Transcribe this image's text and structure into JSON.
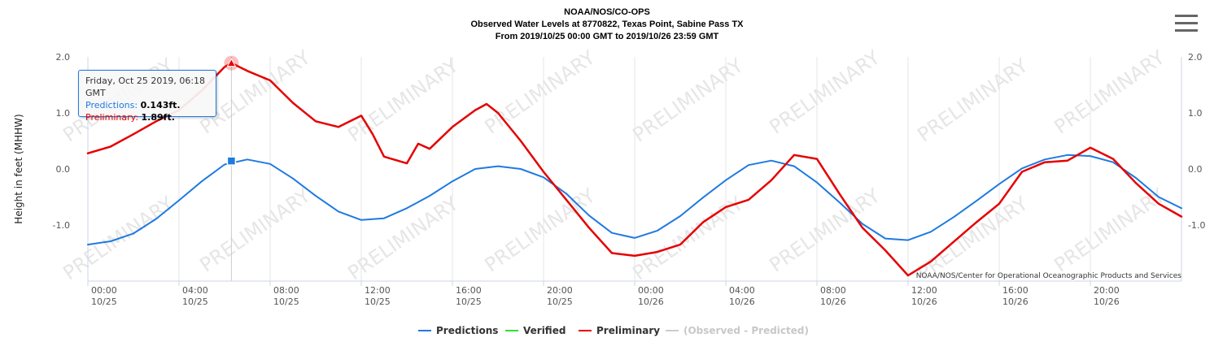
{
  "header": {
    "line1": "NOAA/NOS/CO-OPS",
    "line2": "Observed Water Levels at 8770822, Texas Point, Sabine Pass TX",
    "line3": "From 2019/10/25 00:00 GMT to 2019/10/26 23:59 GMT"
  },
  "watermark": "PRELIMINARY",
  "credit": "NOAA/NOS/Center for Operational Oceanographic Products and Services",
  "tooltip": {
    "date": "Friday, Oct 25 2019, 06:18 GMT",
    "pred_label": "Predictions:",
    "pred_value": "0.143ft.",
    "prelim_label": "Preliminary:",
    "prelim_value": "1.89ft."
  },
  "legend": [
    {
      "label": "Predictions",
      "color": "#1f7ae0"
    },
    {
      "label": "Verified",
      "color": "#33dd33"
    },
    {
      "label": "Preliminary",
      "color": "#e60000"
    },
    {
      "label": "(Observed - Predicted)",
      "color": "#cccccc"
    }
  ],
  "chart_data": {
    "type": "line",
    "ylabel": "Height in feet (MHHW)",
    "ylim": [
      -2.0,
      2.0
    ],
    "xlim_hours": [
      0,
      48
    ],
    "y_ticks": [
      "-1.0",
      "0.0",
      "1.0",
      "2.0"
    ],
    "x_ticks": [
      {
        "time": "00:00",
        "date": "10/25"
      },
      {
        "time": "04:00",
        "date": "10/25"
      },
      {
        "time": "08:00",
        "date": "10/25"
      },
      {
        "time": "12:00",
        "date": "10/25"
      },
      {
        "time": "16:00",
        "date": "10/25"
      },
      {
        "time": "20:00",
        "date": "10/25"
      },
      {
        "time": "00:00",
        "date": "10/26"
      },
      {
        "time": "04:00",
        "date": "10/26"
      },
      {
        "time": "08:00",
        "date": "10/26"
      },
      {
        "time": "12:00",
        "date": "10/26"
      },
      {
        "time": "16:00",
        "date": "10/26"
      },
      {
        "time": "20:00",
        "date": "10/26"
      }
    ],
    "grid": "vertical",
    "series": [
      {
        "name": "Predictions",
        "color": "#1f7ae0",
        "x_hours": [
          0,
          1,
          2,
          3,
          4,
          5,
          6,
          7,
          8,
          9,
          10,
          11,
          12,
          13,
          14,
          15,
          16,
          17,
          18,
          19,
          20,
          21,
          22,
          23,
          24,
          25,
          26,
          27,
          28,
          29,
          30,
          31,
          32,
          33,
          34,
          35,
          36,
          37,
          38,
          39,
          40,
          41,
          42,
          43,
          44,
          45,
          46,
          47,
          48
        ],
        "values": [
          -1.35,
          -1.29,
          -1.15,
          -0.89,
          -0.56,
          -0.22,
          0.08,
          0.17,
          0.09,
          -0.17,
          -0.48,
          -0.76,
          -0.91,
          -0.88,
          -0.7,
          -0.48,
          -0.22,
          0.0,
          0.05,
          0.0,
          -0.15,
          -0.44,
          -0.83,
          -1.14,
          -1.23,
          -1.1,
          -0.84,
          -0.51,
          -0.2,
          0.07,
          0.15,
          0.05,
          -0.24,
          -0.6,
          -0.98,
          -1.24,
          -1.27,
          -1.12,
          -0.86,
          -0.57,
          -0.27,
          0.01,
          0.17,
          0.25,
          0.23,
          0.12,
          -0.16,
          -0.5,
          -0.7
        ]
      },
      {
        "name": "Preliminary",
        "color": "#e60000",
        "x_hours": [
          0,
          1,
          2,
          3,
          4,
          5,
          6,
          6.3,
          7,
          8,
          9,
          10,
          11,
          12,
          12.5,
          13,
          14,
          14.5,
          15,
          16,
          17,
          17.5,
          18,
          19,
          20,
          21,
          22,
          23,
          24,
          25,
          26,
          27,
          28,
          29,
          30,
          31,
          32,
          33,
          34,
          35,
          36,
          37,
          38,
          39,
          40,
          41,
          42,
          43,
          44,
          45,
          46,
          47,
          48
        ],
        "values": [
          0.28,
          0.4,
          0.62,
          0.85,
          1.05,
          1.4,
          1.82,
          1.89,
          1.75,
          1.58,
          1.18,
          0.85,
          0.75,
          0.95,
          0.62,
          0.22,
          0.1,
          0.45,
          0.36,
          0.75,
          1.05,
          1.16,
          1.0,
          0.5,
          -0.05,
          -0.55,
          -1.05,
          -1.5,
          -1.55,
          -1.48,
          -1.35,
          -0.95,
          -0.68,
          -0.55,
          -0.2,
          0.25,
          0.18,
          -0.45,
          -1.05,
          -1.45,
          -1.9,
          -1.65,
          -1.3,
          -0.95,
          -0.62,
          -0.05,
          0.12,
          0.15,
          0.38,
          0.18,
          -0.25,
          -0.62,
          -0.85
        ]
      }
    ]
  }
}
